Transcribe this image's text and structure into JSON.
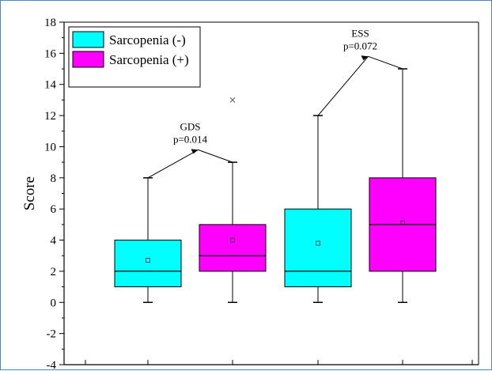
{
  "chart_data": {
    "type": "boxplot",
    "ylabel": "Score",
    "xlabel": "",
    "ylim": [
      -4,
      18
    ],
    "yticks": [
      -4,
      -2,
      0,
      2,
      4,
      6,
      8,
      10,
      12,
      14,
      16,
      18
    ],
    "legend": {
      "placement": "top-left",
      "entries": [
        {
          "name": "Sarcopenia (-)",
          "color": "#00ffff"
        },
        {
          "name": "Sarcopenia (+)",
          "color": "#ff00ff"
        }
      ]
    },
    "boxes": [
      {
        "series": "Sarcopenia (-)",
        "group": "GDS",
        "min": 0,
        "q1": 1,
        "median": 2,
        "q3": 4,
        "max": 8,
        "mean": 2.7,
        "outliers": []
      },
      {
        "series": "Sarcopenia (+)",
        "group": "GDS",
        "min": 0,
        "q1": 2,
        "median": 3,
        "q3": 5,
        "max": 9,
        "mean": 4.0,
        "outliers": [
          13
        ]
      },
      {
        "series": "Sarcopenia (-)",
        "group": "ESS",
        "min": 0,
        "q1": 1,
        "median": 2,
        "q3": 6,
        "max": 12,
        "mean": 3.8,
        "outliers": []
      },
      {
        "series": "Sarcopenia (+)",
        "group": "ESS",
        "min": 0,
        "q1": 2,
        "median": 5,
        "q3": 8,
        "max": 15,
        "mean": 5.1,
        "outliers": []
      }
    ],
    "annotations": [
      {
        "label": "GDS",
        "p_text": "p=0.014",
        "peak": 9.8
      },
      {
        "label": "ESS",
        "p_text": "p=0.072",
        "peak": 15.8
      }
    ],
    "colors": {
      "negative": "#00ffff",
      "positive": "#ff00ff",
      "line": "#000000"
    }
  }
}
